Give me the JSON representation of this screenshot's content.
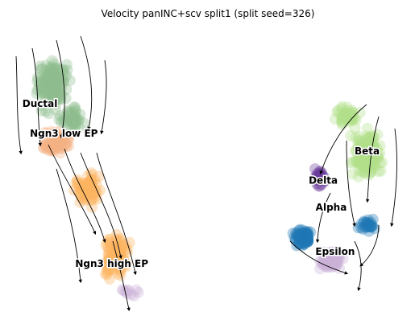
{
  "chart_data": {
    "type": "scatter",
    "title": "Velocity panINC+scv split1 (split seed=326)",
    "xlabel": "",
    "ylabel": "",
    "axes_visible": false,
    "grid": false,
    "legend": "on data",
    "overlay": "velocity streamlines with arrows",
    "colors": {
      "Ductal": "#8fbc8f",
      "Ngn3 low EP": "#f4b183",
      "Ngn3 high EP": "#fdb462",
      "Beta": "#b2df8a",
      "Delta": "#6a3d9a",
      "Alpha": "#1f78b4",
      "Epsilon": "#cab2d6"
    },
    "clusters": [
      {
        "name": "Ductal",
        "label_at": [
          0.08,
          0.72
        ]
      },
      {
        "name": "Ngn3 low EP",
        "label_at": [
          0.14,
          0.62
        ]
      },
      {
        "name": "Ngn3 high EP",
        "label_at": [
          0.26,
          0.18
        ]
      },
      {
        "name": "Beta",
        "label_at": [
          0.9,
          0.56
        ]
      },
      {
        "name": "Delta",
        "label_at": [
          0.79,
          0.46
        ]
      },
      {
        "name": "Alpha",
        "label_at": [
          0.81,
          0.37
        ]
      },
      {
        "name": "Epsilon",
        "label_at": [
          0.82,
          0.22
        ]
      }
    ]
  }
}
